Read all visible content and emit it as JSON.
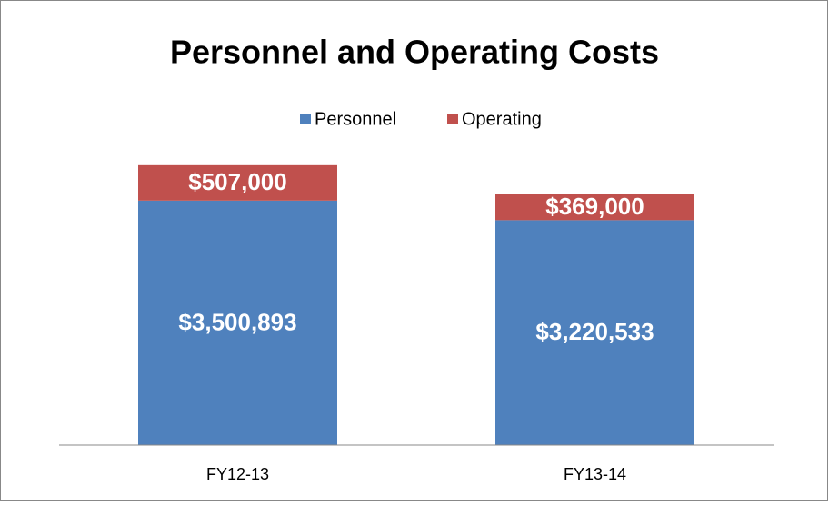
{
  "chart_data": {
    "type": "stacked_bar",
    "title": "Personnel and Operating Costs",
    "categories": [
      "FY12-13",
      "FY13-14"
    ],
    "series": [
      {
        "name": "Personnel",
        "color": "#4f81bd",
        "values": [
          3500893,
          3220533
        ],
        "value_labels": [
          "$3,500,893",
          "$3,220,533"
        ]
      },
      {
        "name": "Operating",
        "color": "#c0504d",
        "values": [
          507000,
          369000
        ],
        "value_labels": [
          "$507,000",
          "$369,000"
        ]
      }
    ],
    "ylim": [
      0,
      4500000
    ],
    "legend": "top"
  }
}
